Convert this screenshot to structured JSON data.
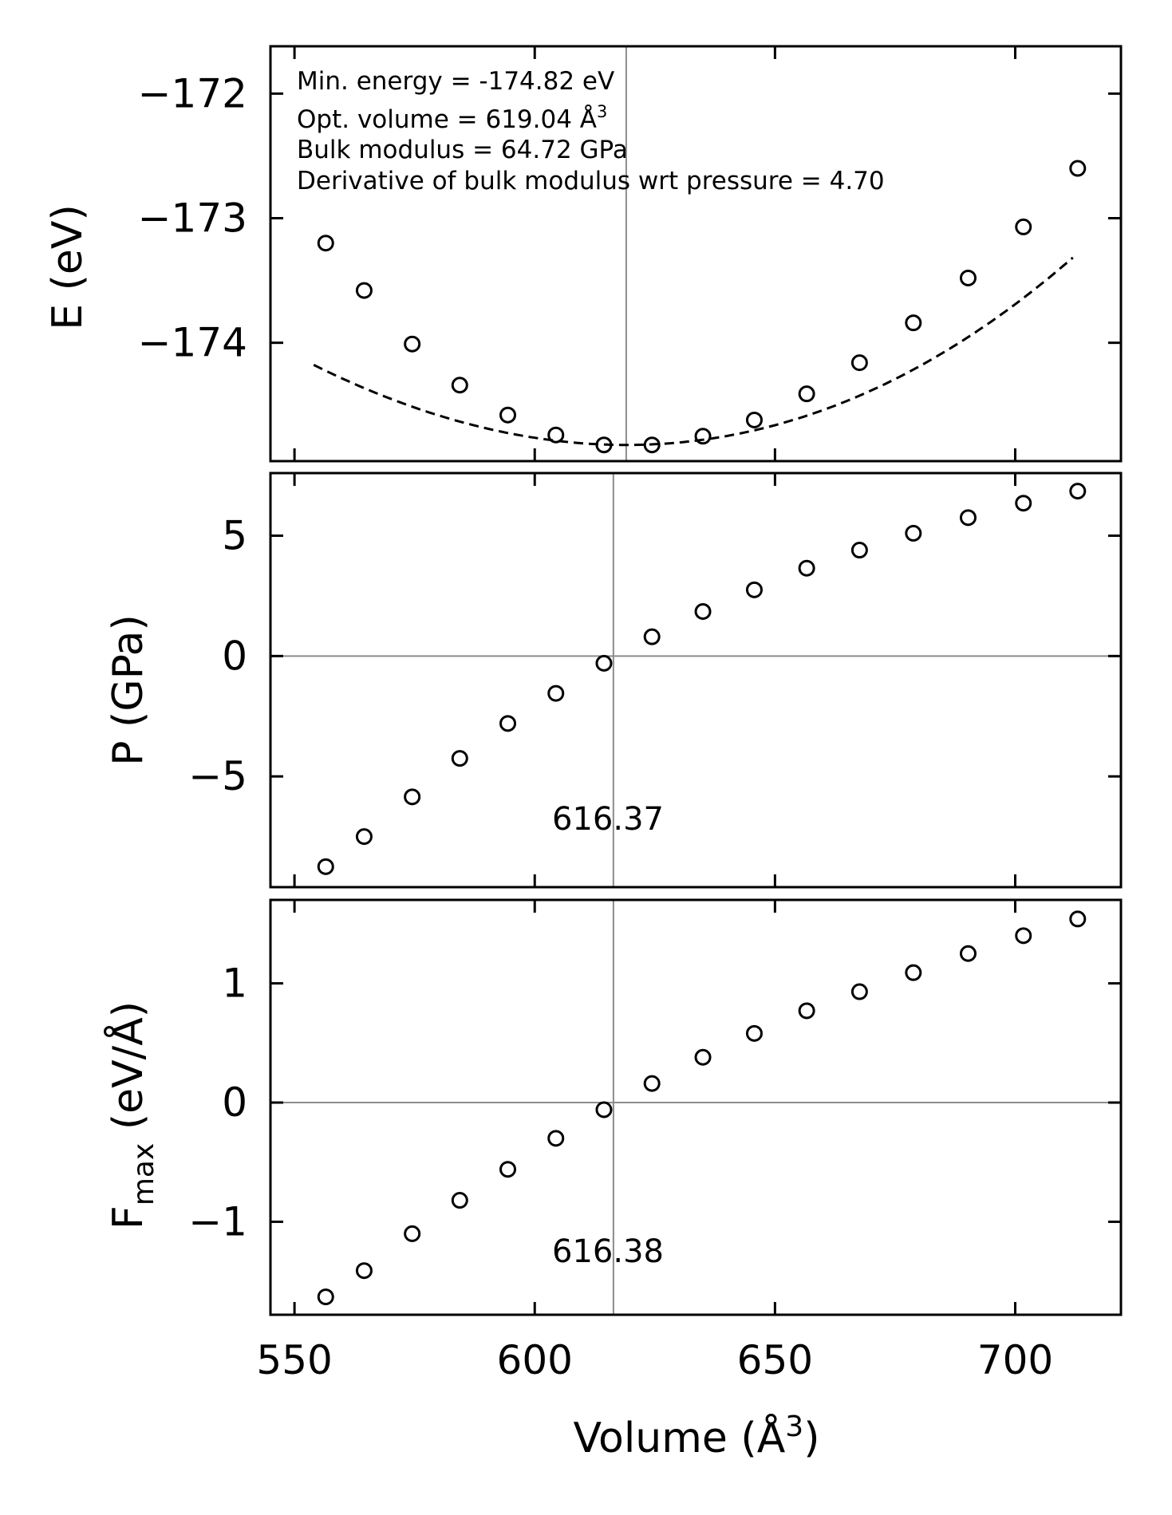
{
  "chart_data": [
    {
      "type": "scatter",
      "panel": "energy",
      "ylabel": "E (eV)",
      "xlim": [
        545,
        722
      ],
      "ylim": [
        -174.95,
        -171.62
      ],
      "yticks": [
        {
          "value": -172,
          "label": "−172"
        },
        {
          "value": -173,
          "label": "−173"
        },
        {
          "value": -174,
          "label": "−174"
        }
      ],
      "vline": 619.04,
      "annotations": [
        {
          "prefix": "Min. energy = -174.82 eV",
          "sup": ""
        },
        {
          "prefix": "Opt. volume = 619.04 Å",
          "sup": "3"
        },
        {
          "prefix": "Bulk modulus = 64.72 GPa",
          "sup": ""
        },
        {
          "prefix": "Derivative of bulk modulus wrt pressure = 4.70",
          "sup": ""
        }
      ],
      "fit": {
        "e0": -174.82,
        "v0": 619.04,
        "a": 0.000161,
        "b": 1.4e-07,
        "x_range": [
          554,
          712
        ]
      },
      "x": [
        556.5,
        564.5,
        574.5,
        584.4,
        594.4,
        604.4,
        614.4,
        624.4,
        635.0,
        645.7,
        656.6,
        667.6,
        678.8,
        690.2,
        701.7,
        713.0
      ],
      "y": [
        -173.2,
        -173.58,
        -174.01,
        -174.34,
        -174.58,
        -174.74,
        -174.82,
        -174.82,
        -174.75,
        -174.62,
        -174.41,
        -174.16,
        -173.84,
        -173.48,
        -173.07,
        -172.6
      ]
    },
    {
      "type": "scatter",
      "panel": "pressure",
      "ylabel": "P (GPa)",
      "xlim": [
        545,
        722
      ],
      "ylim": [
        -9.6,
        7.6
      ],
      "yticks": [
        {
          "value": 5,
          "label": "5"
        },
        {
          "value": 0,
          "label": "0"
        },
        {
          "value": -5,
          "label": "−5"
        }
      ],
      "vline": 616.37,
      "vline_label": "616.37",
      "hline": 0,
      "x": [
        556.5,
        564.5,
        574.5,
        584.4,
        594.4,
        604.4,
        614.4,
        624.4,
        635.0,
        645.7,
        656.6,
        667.6,
        678.8,
        690.2,
        701.7,
        713.0
      ],
      "y": [
        -8.75,
        -7.5,
        -5.85,
        -4.25,
        -2.8,
        -1.55,
        -0.3,
        0.8,
        1.85,
        2.75,
        3.65,
        4.4,
        5.1,
        5.75,
        6.35,
        6.85
      ]
    },
    {
      "type": "scatter",
      "panel": "force",
      "ylabel": "F",
      "ylabel_sub": "max",
      "ylabel_suffix": " (eV/Å)",
      "xlabel": "Volume (Å",
      "xlabel_sup": "3",
      "xlabel_suffix": ")",
      "xlim": [
        545,
        722
      ],
      "ylim": [
        -1.78,
        1.7
      ],
      "xticks": [
        550,
        600,
        650,
        700
      ],
      "yticks": [
        {
          "value": 1,
          "label": "1"
        },
        {
          "value": 0,
          "label": "0"
        },
        {
          "value": -1,
          "label": "−1"
        }
      ],
      "vline": 616.38,
      "vline_label": "616.38",
      "hline": 0,
      "x": [
        556.5,
        564.5,
        574.5,
        584.4,
        594.4,
        604.4,
        614.4,
        624.4,
        635.0,
        645.7,
        656.6,
        667.6,
        678.8,
        690.2,
        701.7,
        713.0
      ],
      "y": [
        -1.63,
        -1.41,
        -1.1,
        -0.82,
        -0.56,
        -0.3,
        -0.06,
        0.16,
        0.38,
        0.58,
        0.77,
        0.93,
        1.09,
        1.25,
        1.4,
        1.54
      ]
    }
  ]
}
